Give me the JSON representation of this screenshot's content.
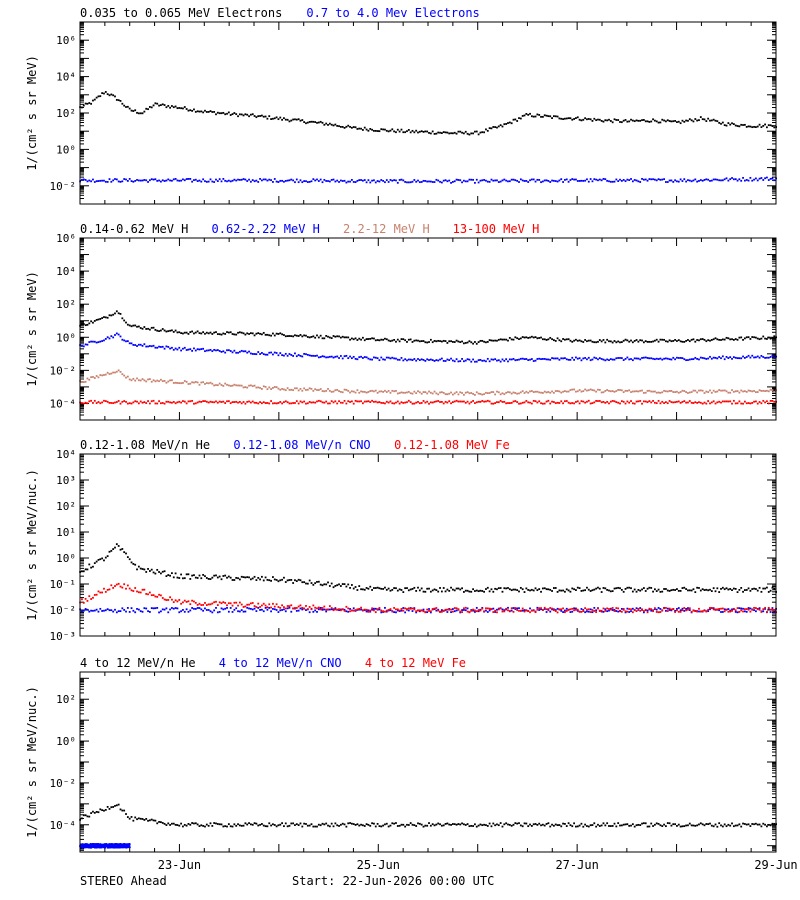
{
  "footer": {
    "left": "STEREO Ahead",
    "center": "Start: 22-Jun-2026 00:00 UTC"
  },
  "x_axis": {
    "start_date": "2026-06-22T00:00",
    "end_date": "2026-06-29T00:00",
    "tick_labels": [
      "23-Jun",
      "25-Jun",
      "27-Jun",
      "29-Jun"
    ]
  },
  "colors": {
    "black": "#000000",
    "blue": "#0000ff",
    "tan": "#c8826e",
    "red": "#ff0000"
  },
  "chart_data": [
    {
      "type": "scatter",
      "ylabel": "1/(cm² s sr MeV)",
      "yscale": "log",
      "ylim": [
        0.001,
        10000000
      ],
      "ytick_exponents": [
        -2,
        0,
        2,
        4,
        6
      ],
      "legend": [
        {
          "text": "0.035 to 0.065 MeV Electrons",
          "color": "#000000"
        },
        {
          "text": "0.7 to 4.0 Mev Electrons",
          "color": "#0000ff"
        }
      ],
      "series": [
        {
          "name": "0.035 to 0.065 MeV Electrons",
          "color": "#000000",
          "x": [
            "2026-06-22T00:00",
            "2026-06-22T03:00",
            "2026-06-22T06:00",
            "2026-06-22T09:00",
            "2026-06-22T12:00",
            "2026-06-22T15:00",
            "2026-06-22T18:00",
            "2026-06-23T00:00",
            "2026-06-23T06:00",
            "2026-06-23T12:00",
            "2026-06-23T18:00",
            "2026-06-24T00:00",
            "2026-06-24T06:00",
            "2026-06-24T12:00",
            "2026-06-24T18:00",
            "2026-06-25T00:00",
            "2026-06-25T06:00",
            "2026-06-25T12:00",
            "2026-06-25T18:00",
            "2026-06-26T00:00",
            "2026-06-26T06:00",
            "2026-06-26T12:00",
            "2026-06-26T18:00",
            "2026-06-27T00:00",
            "2026-06-27T06:00",
            "2026-06-27T12:00",
            "2026-06-27T18:00",
            "2026-06-28T00:00",
            "2026-06-28T06:00",
            "2026-06-28T12:00",
            "2026-06-28T18:00",
            "2026-06-29T00:00"
          ],
          "y": [
            200,
            400,
            1500,
            600,
            150,
            100,
            300,
            200,
            120,
            90,
            70,
            50,
            35,
            25,
            15,
            12,
            10,
            9,
            8,
            8,
            20,
            80,
            60,
            50,
            40,
            35,
            40,
            30,
            50,
            25,
            20,
            20
          ]
        },
        {
          "name": "0.7 to 4.0 Mev Electrons",
          "color": "#0000ff",
          "x": [
            "2026-06-22T00:00",
            "2026-06-23T00:00",
            "2026-06-24T00:00",
            "2026-06-25T00:00",
            "2026-06-26T00:00",
            "2026-06-27T00:00",
            "2026-06-28T00:00",
            "2026-06-29T00:00"
          ],
          "y": [
            0.02,
            0.02,
            0.02,
            0.018,
            0.018,
            0.02,
            0.02,
            0.025
          ]
        }
      ]
    },
    {
      "type": "scatter",
      "ylabel": "1/(cm² s sr MeV)",
      "yscale": "log",
      "ylim": [
        1e-05,
        1000000
      ],
      "ytick_exponents": [
        -4,
        -2,
        0,
        2,
        4,
        6
      ],
      "legend": [
        {
          "text": "0.14-0.62 MeV H",
          "color": "#000000"
        },
        {
          "text": "0.62-2.22 MeV H",
          "color": "#0000ff"
        },
        {
          "text": "2.2-12 MeV H",
          "color": "#c8826e"
        },
        {
          "text": "13-100 MeV H",
          "color": "#ff0000"
        }
      ],
      "series": [
        {
          "name": "0.14-0.62 MeV H",
          "color": "#000000",
          "x": [
            "2026-06-22T00:00",
            "2026-06-22T06:00",
            "2026-06-22T09:00",
            "2026-06-22T12:00",
            "2026-06-23T00:00",
            "2026-06-24T00:00",
            "2026-06-25T00:00",
            "2026-06-26T00:00",
            "2026-06-26T12:00",
            "2026-06-27T00:00",
            "2026-06-28T00:00",
            "2026-06-29T00:00"
          ],
          "y": [
            5,
            15,
            40,
            5,
            2,
            1.5,
            0.7,
            0.5,
            1,
            0.6,
            0.6,
            1
          ]
        },
        {
          "name": "0.62-2.22 MeV H",
          "color": "#0000ff",
          "x": [
            "2026-06-22T00:00",
            "2026-06-22T06:00",
            "2026-06-22T09:00",
            "2026-06-22T12:00",
            "2026-06-23T00:00",
            "2026-06-24T00:00",
            "2026-06-25T00:00",
            "2026-06-26T00:00",
            "2026-06-27T00:00",
            "2026-06-28T00:00",
            "2026-06-29T00:00"
          ],
          "y": [
            0.3,
            0.8,
            1.5,
            0.4,
            0.2,
            0.1,
            0.05,
            0.04,
            0.05,
            0.05,
            0.07
          ]
        },
        {
          "name": "2.2-12 MeV H",
          "color": "#c8826e",
          "x": [
            "2026-06-22T00:00",
            "2026-06-22T09:00",
            "2026-06-22T12:00",
            "2026-06-23T00:00",
            "2026-06-24T00:00",
            "2026-06-25T00:00",
            "2026-06-26T00:00",
            "2026-06-27T00:00",
            "2026-06-28T00:00",
            "2026-06-29T00:00"
          ],
          "y": [
            0.002,
            0.01,
            0.003,
            0.002,
            0.0008,
            0.0005,
            0.0004,
            0.0006,
            0.0005,
            0.0006
          ]
        },
        {
          "name": "13-100 MeV H",
          "color": "#ff0000",
          "x": [
            "2026-06-22T00:00",
            "2026-06-29T00:00"
          ],
          "y": [
            0.00012,
            0.00012
          ]
        }
      ]
    },
    {
      "type": "scatter",
      "ylabel": "1/(cm² s sr MeV/nuc.)",
      "yscale": "log",
      "ylim": [
        0.001,
        10000
      ],
      "ytick_exponents": [
        -3,
        -2,
        -1,
        0,
        1,
        2,
        3,
        4
      ],
      "legend": [
        {
          "text": "0.12-1.08 MeV/n He",
          "color": "#000000"
        },
        {
          "text": "0.12-1.08 MeV/n CNO",
          "color": "#0000ff"
        },
        {
          "text": "0.12-1.08 MeV Fe",
          "color": "#ff0000"
        }
      ],
      "series": [
        {
          "name": "0.12-1.08 MeV/n He",
          "color": "#000000",
          "x": [
            "2026-06-22T00:00",
            "2026-06-22T06:00",
            "2026-06-22T09:00",
            "2026-06-22T14:00",
            "2026-06-23T00:00",
            "2026-06-24T00:00",
            "2026-06-25T00:00",
            "2026-06-26T00:00",
            "2026-06-27T00:00",
            "2026-06-28T00:00",
            "2026-06-29T00:00"
          ],
          "y": [
            0.3,
            1,
            3,
            0.4,
            0.2,
            0.15,
            0.06,
            0.06,
            0.06,
            0.06,
            0.06
          ]
        },
        {
          "name": "0.12-1.08 MeV/n CNO",
          "color": "#0000ff",
          "x": [
            "2026-06-22T00:00",
            "2026-06-23T00:00",
            "2026-06-25T00:00",
            "2026-06-27T00:00",
            "2026-06-29T00:00"
          ],
          "y": [
            0.01,
            0.01,
            0.01,
            0.01,
            0.01
          ]
        },
        {
          "name": "0.12-1.08 MeV Fe",
          "color": "#ff0000",
          "x": [
            "2026-06-22T00:00",
            "2026-06-22T09:00",
            "2026-06-23T00:00",
            "2026-06-25T00:00",
            "2026-06-27T00:00",
            "2026-06-29T00:00"
          ],
          "y": [
            0.02,
            0.1,
            0.02,
            0.01,
            0.01,
            0.01
          ]
        }
      ]
    },
    {
      "type": "scatter",
      "ylabel": "1/(cm² s sr MeV/nuc.)",
      "yscale": "log",
      "ylim": [
        5e-06,
        2000
      ],
      "ytick_exponents": [
        -4,
        -2,
        0,
        2
      ],
      "legend": [
        {
          "text": "4 to 12 MeV/n He",
          "color": "#000000"
        },
        {
          "text": "4 to 12 MeV/n CNO",
          "color": "#0000ff"
        },
        {
          "text": "4 to 12 MeV Fe",
          "color": "#ff0000"
        }
      ],
      "series": [
        {
          "name": "4 to 12 MeV/n He",
          "color": "#000000",
          "x": [
            "2026-06-22T00:00",
            "2026-06-22T09:00",
            "2026-06-22T12:00",
            "2026-06-23T00:00",
            "2026-06-25T00:00",
            "2026-06-26T00:00",
            "2026-06-27T00:00",
            "2026-06-28T00:00",
            "2026-06-29T00:00"
          ],
          "y": [
            0.0002,
            0.001,
            0.0002,
            0.0001,
            0.0001,
            0.0001,
            0.0001,
            0.0001,
            0.0001
          ]
        },
        {
          "name": "4 to 12 MeV/n CNO",
          "color": "#0000ff",
          "x": [
            "2026-06-22T00:00",
            "2026-06-22T12:00"
          ],
          "y": [
            1e-05,
            1e-05
          ]
        }
      ]
    }
  ]
}
